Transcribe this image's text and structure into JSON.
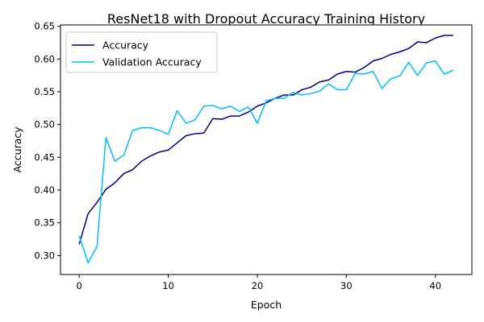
{
  "chart_data": {
    "type": "line",
    "title": "ResNet18 with Dropout Accuracy Training History",
    "xlabel": "Epoch",
    "ylabel": "Accuracy",
    "xlim": [
      -2.1,
      44.1
    ],
    "ylim": [
      0.271,
      0.652
    ],
    "xticks": [
      0,
      10,
      20,
      30,
      40
    ],
    "yticks": [
      0.3,
      0.35,
      0.4,
      0.45,
      0.5,
      0.55,
      0.6,
      0.65
    ],
    "legend_position": "top-left",
    "grid": false,
    "x": [
      0,
      1,
      2,
      3,
      4,
      5,
      6,
      7,
      8,
      9,
      10,
      11,
      12,
      13,
      14,
      15,
      16,
      17,
      18,
      19,
      20,
      21,
      22,
      23,
      24,
      25,
      26,
      27,
      28,
      29,
      30,
      31,
      32,
      33,
      34,
      35,
      36,
      37,
      38,
      39,
      40,
      41,
      42
    ],
    "series": [
      {
        "name": "Accuracy",
        "color": "#000080",
        "values": [
          0.317,
          0.364,
          0.381,
          0.401,
          0.411,
          0.425,
          0.431,
          0.444,
          0.452,
          0.458,
          0.461,
          0.472,
          0.483,
          0.486,
          0.487,
          0.509,
          0.508,
          0.513,
          0.513,
          0.519,
          0.528,
          0.533,
          0.54,
          0.545,
          0.545,
          0.553,
          0.557,
          0.565,
          0.568,
          0.577,
          0.581,
          0.58,
          0.587,
          0.597,
          0.601,
          0.607,
          0.611,
          0.616,
          0.626,
          0.625,
          0.632,
          0.636,
          0.636
        ]
      },
      {
        "name": "Validation Accuracy",
        "color": "#00BFFF",
        "values": [
          0.33,
          0.289,
          0.314,
          0.48,
          0.444,
          0.453,
          0.491,
          0.495,
          0.495,
          0.491,
          0.485,
          0.521,
          0.502,
          0.507,
          0.528,
          0.529,
          0.524,
          0.528,
          0.52,
          0.527,
          0.502,
          0.536,
          0.54,
          0.54,
          0.549,
          0.545,
          0.547,
          0.551,
          0.562,
          0.553,
          0.553,
          0.578,
          0.577,
          0.581,
          0.555,
          0.57,
          0.574,
          0.595,
          0.575,
          0.594,
          0.597,
          0.577,
          0.583
        ]
      }
    ]
  }
}
